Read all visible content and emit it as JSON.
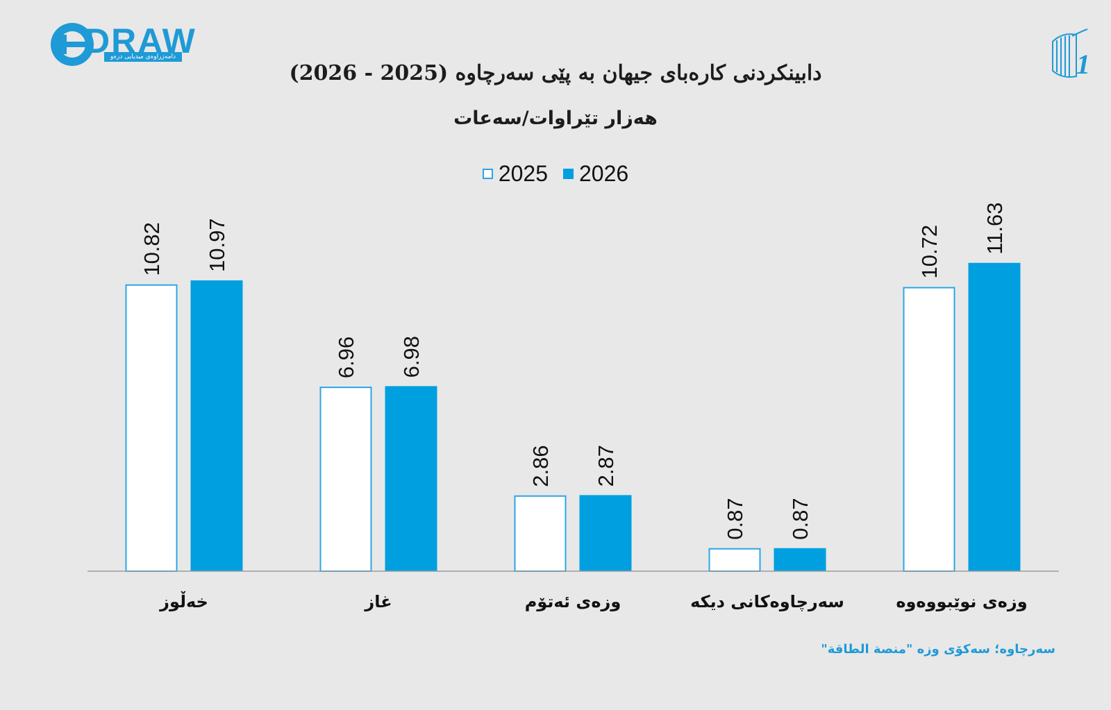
{
  "branding": {
    "logo_left_text": "DRAW",
    "logo_left_subtext": "دامەزراوەی میدیایی درەو",
    "logo_right_text": "1"
  },
  "header": {
    "title": "دابینکردنی کارەبای جیهان بە پێی سەرچاوە (2025 - 2026)",
    "subtitle": "هەزار تێراوات/سەعات"
  },
  "colors": {
    "accent": "#009fe0",
    "outline": "#2aa6e6",
    "axis": "#9c9c9c",
    "background": "#e8e8e8"
  },
  "chart_data": {
    "type": "bar",
    "title": "دابینکردنی کارەبای جیهان بە پێی سەرچاوە (2025 - 2026)",
    "subtitle": "هەزار تێراوات/سەعات",
    "categories": [
      "خەڵوز",
      "غاز",
      "وزەی ئەتۆم",
      "سەرچاوەکانی دیکە",
      "وزەی نوێبووەوە"
    ],
    "series": [
      {
        "name": "2025",
        "values": [
          10.82,
          6.96,
          2.86,
          0.87,
          10.72
        ],
        "style": "outline"
      },
      {
        "name": "2026",
        "values": [
          10.97,
          6.98,
          2.87,
          0.87,
          11.63
        ],
        "style": "filled"
      }
    ],
    "ylim": [
      0,
      13
    ],
    "grid": false,
    "legend_position": "top-center",
    "data_labels": true
  },
  "footer": {
    "source": "سەرچاوە؛ سەکۆی وزە \"منصة الطاقة\""
  }
}
